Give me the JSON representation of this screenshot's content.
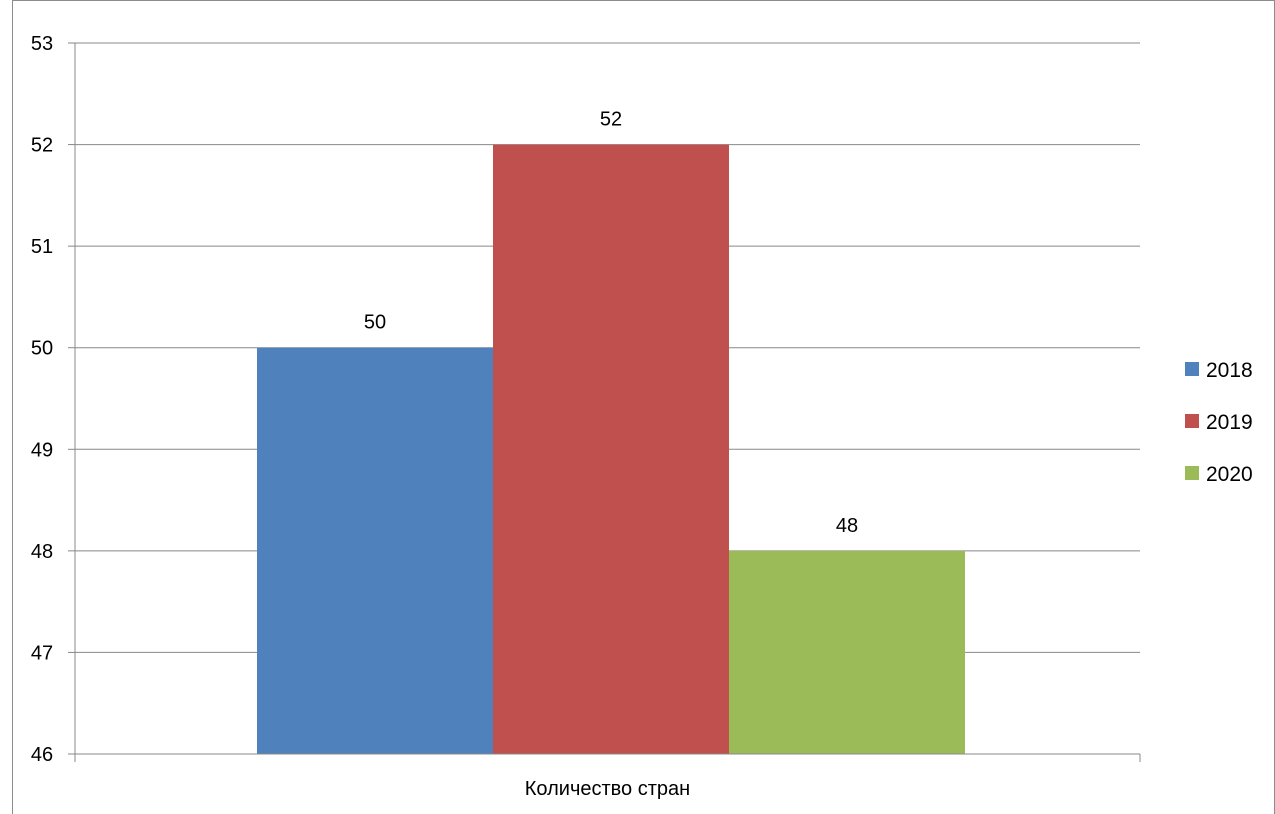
{
  "chart_data": {
    "type": "bar",
    "categories": [
      "Количество стран"
    ],
    "series": [
      {
        "name": "2018",
        "values": [
          50
        ],
        "color": "#4F81BD"
      },
      {
        "name": "2019",
        "values": [
          52
        ],
        "color": "#C0504D"
      },
      {
        "name": "2020",
        "values": [
          48
        ],
        "color": "#9BBB59"
      }
    ],
    "ylim": [
      46,
      53
    ],
    "yticks": [
      "46",
      "47",
      "48",
      "49",
      "50",
      "51",
      "52",
      "53"
    ],
    "data_labels": [
      "50",
      "52",
      "48"
    ],
    "grid": true,
    "legend": "right",
    "gridline_color": "#888888",
    "axis_color": "#888888"
  }
}
